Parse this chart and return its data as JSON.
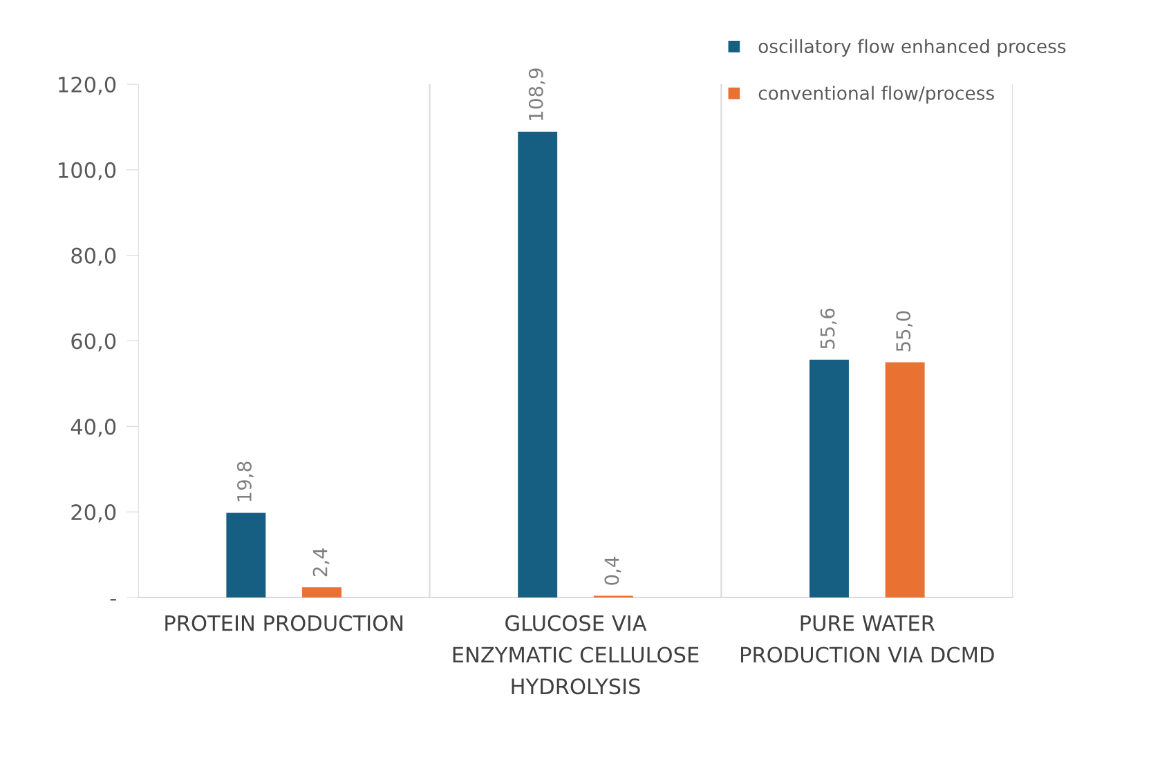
{
  "chart_data": {
    "type": "bar",
    "categories": [
      "PROTEIN PRODUCTION",
      "GLUCOSE VIA\nENZYMATIC CELLULOSE\nHYDROLYSIS",
      "PURE WATER\nPRODUCTION VIA DCMD"
    ],
    "series": [
      {
        "name": "oscillatory flow enhanced process",
        "color": "#165f82",
        "values": [
          19.8,
          108.9,
          55.6
        ],
        "value_labels": [
          "19,8",
          "108,9",
          "55,6"
        ]
      },
      {
        "name": "conventional flow/process",
        "color": "#e97132",
        "values": [
          2.4,
          0.4,
          55.0
        ],
        "value_labels": [
          "2,4",
          "0,4",
          "55,0"
        ]
      }
    ],
    "ylim": [
      0,
      120
    ],
    "yticks": [
      {
        "value": 0,
        "label": "-"
      },
      {
        "value": 20,
        "label": "20,0"
      },
      {
        "value": 40,
        "label": "40,0"
      },
      {
        "value": 60,
        "label": "60,0"
      },
      {
        "value": 80,
        "label": "80,0"
      },
      {
        "value": 100,
        "label": "100,0"
      },
      {
        "value": 120,
        "label": "120,0"
      }
    ],
    "grid": "x",
    "legend": "top right"
  }
}
